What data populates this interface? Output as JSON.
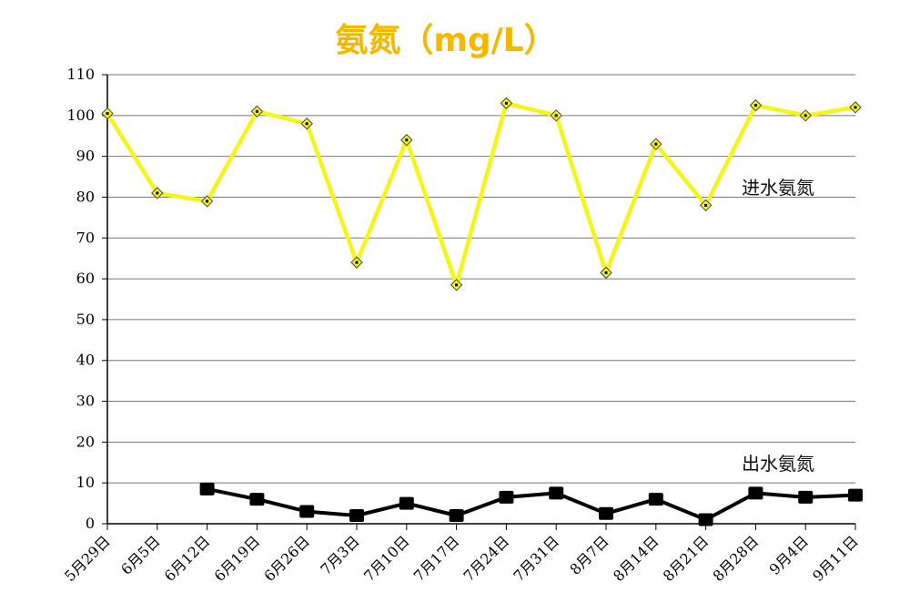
{
  "chart_data": {
    "type": "line",
    "title": "氨氮（mg/L）",
    "categories": [
      "5月29日",
      "6月5日",
      "6月12日",
      "6月19日",
      "6月26日",
      "7月3日",
      "7月10日",
      "7月17日",
      "7月24日",
      "7月31日",
      "8月7日",
      "8月14日",
      "8月21日",
      "8月28日",
      "9月4日",
      "9月11日"
    ],
    "y_ticks": [
      0,
      10,
      20,
      30,
      40,
      50,
      60,
      70,
      80,
      90,
      100,
      110
    ],
    "ylim": [
      0,
      110
    ],
    "grid": true,
    "series": [
      {
        "name": "进水氨氮",
        "color": "#f5f51a",
        "marker": "diamond",
        "values": [
          100.5,
          81,
          79,
          101,
          98,
          64,
          94,
          58.5,
          103,
          100,
          61.5,
          93,
          78,
          102.5,
          100,
          102
        ]
      },
      {
        "name": "出水氨氮",
        "color": "#000000",
        "marker": "square",
        "values": [
          null,
          null,
          8.5,
          6,
          3,
          2,
          5,
          2,
          6.5,
          7.5,
          2.5,
          6,
          1,
          7.5,
          6.5,
          7
        ]
      }
    ]
  }
}
